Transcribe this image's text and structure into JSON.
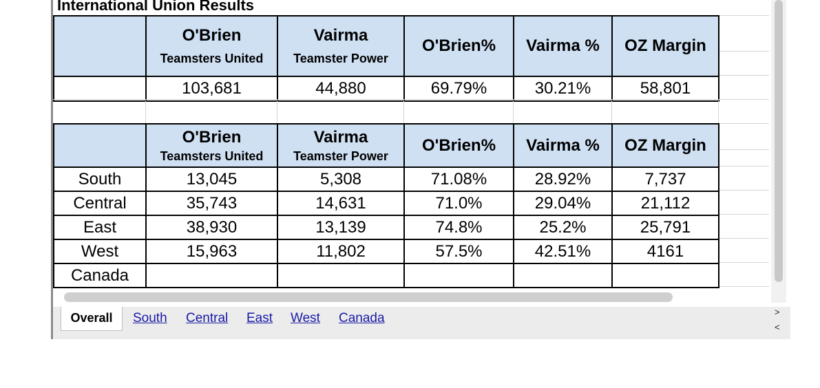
{
  "title": "International Union Results",
  "header": {
    "candidate1": "O'Brien",
    "party1": "Teamsters United",
    "candidate2": "Vairma",
    "party2": "Teamster Power",
    "pct1": "O'Brien%",
    "pct2": "Vairma %",
    "margin": "OZ Margin"
  },
  "overall": {
    "label": "",
    "obrien": "103,681",
    "vairma": "44,880",
    "obrien_pct": "69.79%",
    "vairma_pct": "30.21%",
    "margin": "58,801"
  },
  "regions": [
    {
      "label": "South",
      "obrien": "13,045",
      "vairma": "5,308",
      "obrien_pct": "71.08%",
      "vairma_pct": "28.92%",
      "margin": "7,737"
    },
    {
      "label": "Central",
      "obrien": "35,743",
      "vairma": "14,631",
      "obrien_pct": "71.0%",
      "vairma_pct": "29.04%",
      "margin": "21,112"
    },
    {
      "label": "East",
      "obrien": "38,930",
      "vairma": "13,139",
      "obrien_pct": "74.8%",
      "vairma_pct": "25.2%",
      "margin": "25,791"
    },
    {
      "label": "West",
      "obrien": "15,963",
      "vairma": "11,802",
      "obrien_pct": "57.5%",
      "vairma_pct": "42.51%",
      "margin": "4161"
    },
    {
      "label": "Canada",
      "obrien": "",
      "vairma": "",
      "obrien_pct": "",
      "vairma_pct": "",
      "margin": ""
    }
  ],
  "tabs": {
    "active": "Overall",
    "others": [
      "South",
      "Central",
      "East",
      "West",
      "Canada"
    ]
  },
  "nav": {
    "next": ">",
    "prev": "<"
  },
  "colors": {
    "header_bg": "#cfe0f3",
    "link": "#1a1aa6"
  }
}
